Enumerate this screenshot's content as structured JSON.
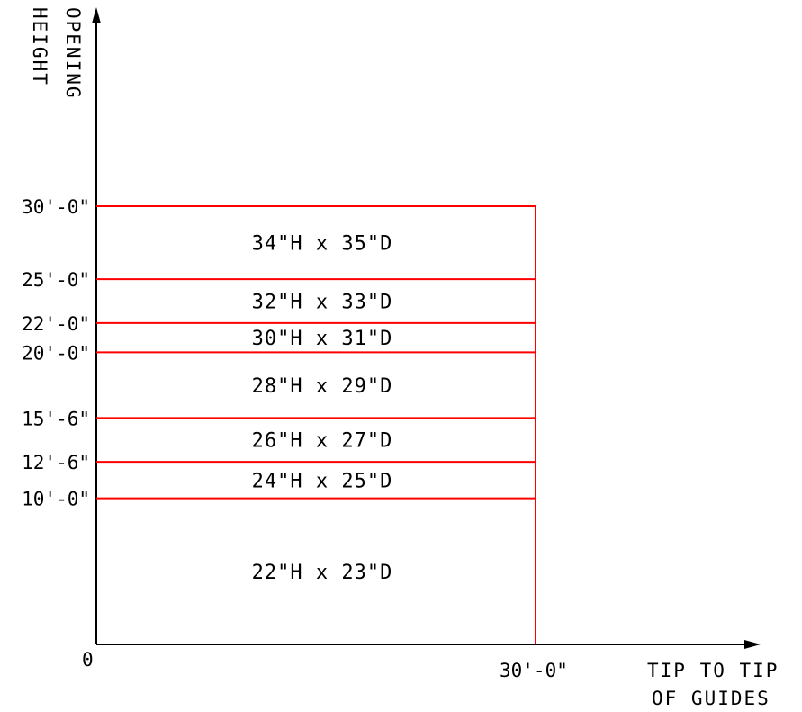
{
  "y_axis": {
    "title_line1": "OPENING",
    "title_line2": "HEIGHT"
  },
  "x_axis": {
    "title_line1": "TIP TO TIP",
    "title_line2": "OF GUIDES",
    "origin_label": "0",
    "max_label": "30'-0\""
  },
  "colors": {
    "boundary": "#ff0000",
    "axis": "#000000"
  },
  "chart_data": {
    "type": "table",
    "x_range": [
      0,
      30
    ],
    "y_range": [
      0,
      30
    ],
    "y_boundaries_ft": [
      10,
      12.5,
      15.5,
      20,
      22,
      25,
      30
    ],
    "y_tick_labels": [
      "10'-0\"",
      "12'-6\"",
      "15'-6\"",
      "20'-0\"",
      "22'-0\"",
      "25'-0\"",
      "30'-0\""
    ],
    "zones": [
      {
        "from_ft": 0,
        "to_ft": 10,
        "label": "22\"H x 23\"D"
      },
      {
        "from_ft": 10,
        "to_ft": 12.5,
        "label": "24\"H x 25\"D"
      },
      {
        "from_ft": 12.5,
        "to_ft": 15.5,
        "label": "26\"H x 27\"D"
      },
      {
        "from_ft": 15.5,
        "to_ft": 20,
        "label": "28\"H x 29\"D"
      },
      {
        "from_ft": 20,
        "to_ft": 22,
        "label": "30\"H x 31\"D"
      },
      {
        "from_ft": 22,
        "to_ft": 25,
        "label": "32\"H x 33\"D"
      },
      {
        "from_ft": 25,
        "to_ft": 30,
        "label": "34\"H x 35\"D"
      }
    ]
  }
}
